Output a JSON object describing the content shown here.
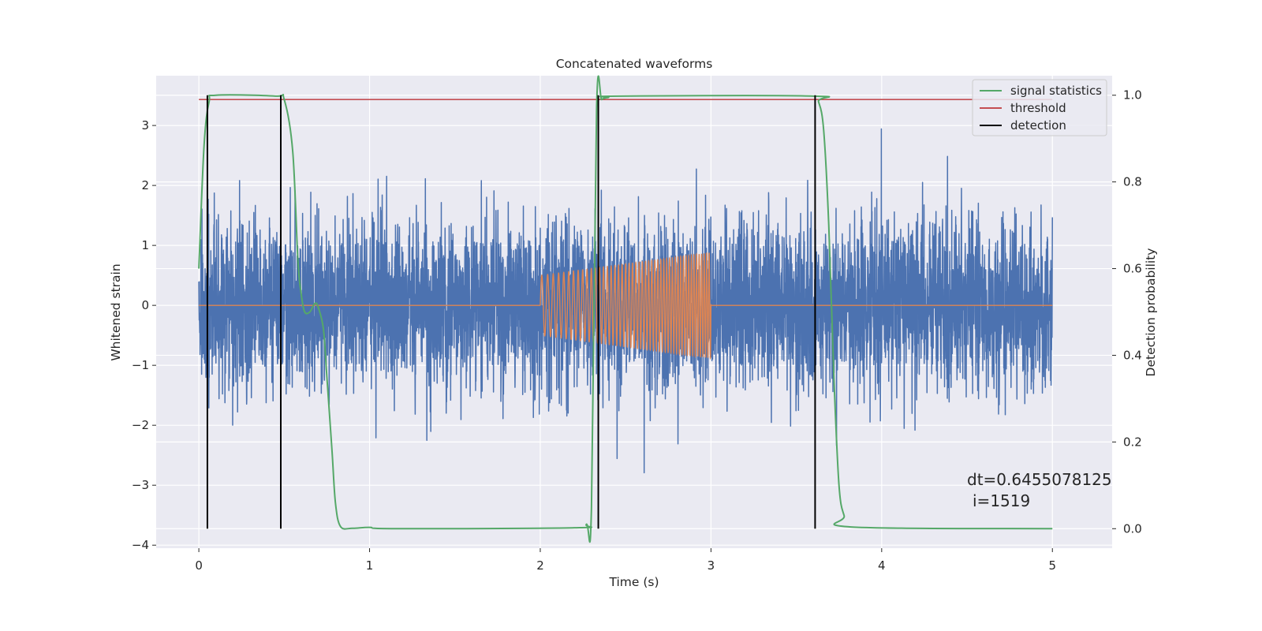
{
  "chart_data": {
    "type": "line",
    "title": "Concatenated waveforms",
    "xlabel": "Time (s)",
    "ylabel": "Whitened strain",
    "y2label": "Detection probability",
    "xlim": [
      -0.25,
      5.35
    ],
    "ylim": [
      -4.05,
      3.83
    ],
    "y2lim": [
      -0.045,
      1.045
    ],
    "x_ticks": [
      0,
      1,
      2,
      3,
      4,
      5
    ],
    "y_ticks": [
      -4,
      -3,
      -2,
      -1,
      0,
      1,
      2,
      3
    ],
    "y2_ticks": [
      0.0,
      0.2,
      0.4,
      0.6,
      0.8,
      1.0
    ],
    "y2_tick_labels": [
      "0.0",
      "0.2",
      "0.4",
      "0.6",
      "0.8",
      "1.0"
    ],
    "grid": true,
    "legend_position": "top-right",
    "colors": {
      "background": "#EAEAF2",
      "strain": "#4C72B0",
      "injection": "#DD8452",
      "signal_statistics": "#55A868",
      "threshold": "#C44E52",
      "detection": "#000000"
    },
    "series": [
      {
        "name": "",
        "axis": "left",
        "description": "whitened strain noise",
        "x_range": [
          0,
          5
        ],
        "typical_amplitude": 1.0,
        "max": 3.45,
        "min": -3.7
      },
      {
        "name": "",
        "axis": "left",
        "description": "injected chirp",
        "x_range": [
          0,
          5
        ],
        "zero_outside": [
          2.0,
          3.0
        ],
        "amplitude_start": 0.5,
        "amplitude_end": 0.88,
        "freq_start_hz": 28,
        "freq_end_hz": 70
      },
      {
        "name": "signal statistics",
        "axis": "right",
        "x": [
          0.0,
          0.03,
          0.06,
          0.1,
          0.45,
          0.5,
          0.55,
          0.58,
          0.6,
          0.62,
          0.65,
          0.68,
          0.7,
          0.73,
          0.75,
          0.78,
          0.8,
          0.83,
          0.9,
          1.0,
          1.15,
          2.2,
          2.27,
          2.3,
          2.33,
          2.36,
          2.4,
          2.45,
          3.6,
          3.63,
          3.66,
          3.69,
          3.72,
          3.75,
          3.78,
          3.82,
          5.0
        ],
        "y": [
          0.6,
          0.88,
          0.985,
          1.0,
          0.998,
          0.99,
          0.87,
          0.62,
          0.54,
          0.5,
          0.5,
          0.52,
          0.51,
          0.46,
          0.35,
          0.18,
          0.06,
          0.005,
          0.001,
          0.003,
          0.0,
          0.002,
          0.01,
          0.05,
          0.97,
          0.99,
          0.995,
          0.998,
          0.998,
          0.985,
          0.92,
          0.7,
          0.35,
          0.1,
          0.03,
          0.004,
          0.0
        ]
      },
      {
        "name": "threshold",
        "axis": "right",
        "x": [
          0,
          5
        ],
        "y": [
          0.99,
          0.99
        ]
      },
      {
        "name": "detection",
        "axis": "right",
        "vlines": [
          0.05,
          0.48,
          2.34,
          3.61
        ],
        "ymin": 0.0,
        "ymax": 1.0
      }
    ],
    "legend": [
      "signal statistics",
      "threshold",
      "detection"
    ],
    "annotation": {
      "line1": "dt=0.6455078125",
      "line2": "i=1519",
      "x": 4.52,
      "y": 0.1
    }
  }
}
